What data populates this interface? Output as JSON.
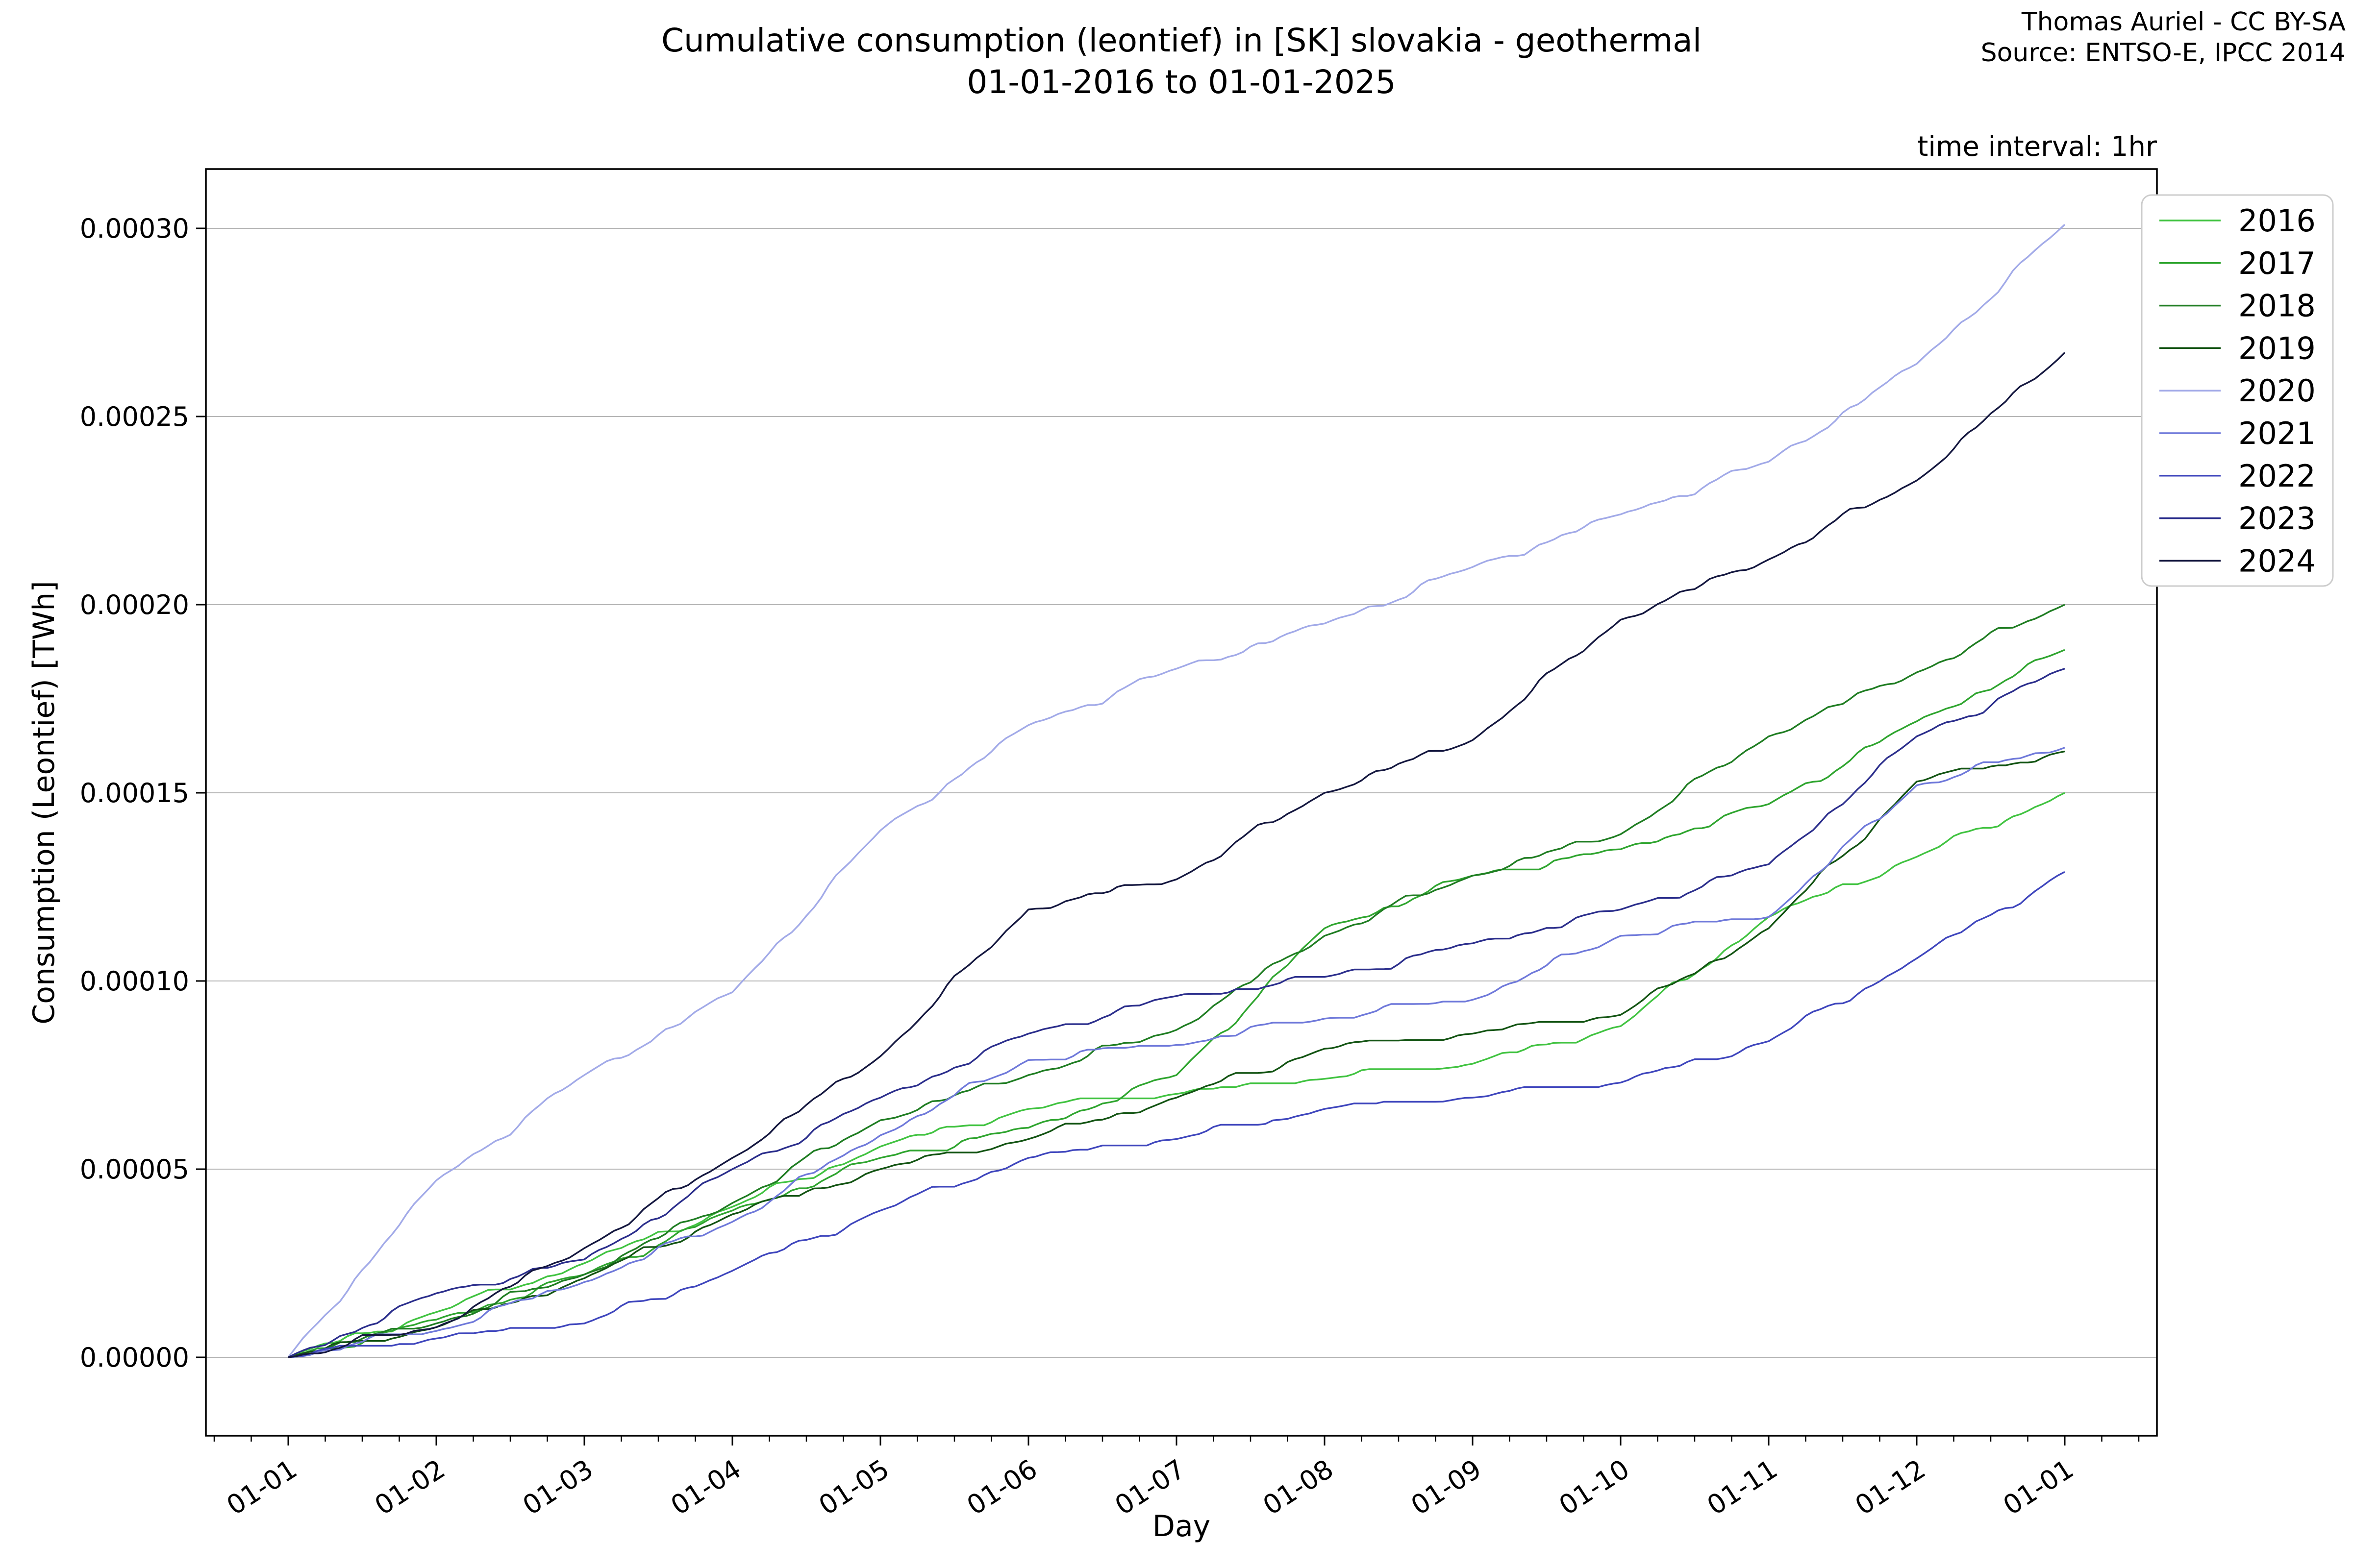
{
  "title": {
    "line1": "Cumulative consumption (leontief) in [SK] slovakia - geothermal",
    "line2": "01-01-2016 to 01-01-2025"
  },
  "attribution": {
    "line1": "Thomas Auriel - CC BY-SA",
    "line2": "Source: ENTSO-E, IPCC 2014"
  },
  "plot_note": "time interval: 1hr",
  "axes": {
    "x_label": "Day",
    "y_label": "Consumption (Leontief) [TWh]",
    "x_tick_labels": [
      "01-01",
      "01-02",
      "01-03",
      "01-04",
      "01-05",
      "01-06",
      "01-07",
      "01-08",
      "01-09",
      "01-10",
      "01-11",
      "01-12",
      "01-01"
    ],
    "y_tick_labels": [
      "0.00000",
      "0.00005",
      "0.00010",
      "0.00015",
      "0.00020",
      "0.00025",
      "0.00030"
    ],
    "y_tick_values": [
      0.0,
      5e-05,
      0.0001,
      0.00015,
      0.0002,
      0.00025,
      0.0003
    ]
  },
  "chart_data": {
    "type": "line",
    "units": "TWh",
    "x": [
      "01-01",
      "01-02",
      "01-03",
      "01-04",
      "01-05",
      "01-06",
      "01-07",
      "01-08",
      "01-09",
      "01-10",
      "01-11",
      "01-12",
      "01-01"
    ],
    "xlabel": "Day",
    "ylabel": "Consumption (Leontief) [TWh]",
    "ylim": [
      -2e-05,
      0.000316
    ],
    "grid": "horizontal",
    "legend_position": "upper right outside",
    "series": [
      {
        "name": "2016",
        "color": "#41c341",
        "values": [
          0,
          1.2e-05,
          2.5e-05,
          4e-05,
          5.6e-05,
          6.6e-05,
          7e-05,
          7.4e-05,
          7.8e-05,
          8.8e-05,
          0.000117,
          0.000133,
          0.00015
        ]
      },
      {
        "name": "2017",
        "color": "#2fa52f",
        "values": [
          0,
          1e-05,
          2.2e-05,
          3.9e-05,
          5.3e-05,
          6.1e-05,
          7.5e-05,
          0.000114,
          0.000128,
          0.000135,
          0.000147,
          0.000169,
          0.000188
        ]
      },
      {
        "name": "2018",
        "color": "#1f7d22",
        "values": [
          0,
          9e-06,
          2.2e-05,
          4.1e-05,
          6.3e-05,
          7.5e-05,
          8.7e-05,
          0.000112,
          0.000128,
          0.000139,
          0.000165,
          0.000182,
          0.0002
        ]
      },
      {
        "name": "2019",
        "color": "#135413",
        "values": [
          0,
          8e-06,
          2.1e-05,
          3.8e-05,
          5e-05,
          5.8e-05,
          6.9e-05,
          8.2e-05,
          8.6e-05,
          9.1e-05,
          0.000114,
          0.000153,
          0.000161
        ]
      },
      {
        "name": "2020",
        "color": "#a2aae8",
        "values": [
          0,
          4.7e-05,
          7.5e-05,
          9.7e-05,
          0.00014,
          0.000168,
          0.000183,
          0.000195,
          0.00021,
          0.000224,
          0.000238,
          0.000264,
          0.000301
        ]
      },
      {
        "name": "2021",
        "color": "#6f79da",
        "values": [
          0,
          7e-06,
          2e-05,
          3.6e-05,
          5.9e-05,
          7.9e-05,
          8.3e-05,
          9e-05,
          9.5e-05,
          0.000112,
          0.000117,
          0.000152,
          0.000162
        ]
      },
      {
        "name": "2022",
        "color": "#3f46bd",
        "values": [
          0,
          5e-06,
          9e-06,
          2.3e-05,
          3.9e-05,
          5.3e-05,
          5.8e-05,
          6.6e-05,
          6.9e-05,
          7.3e-05,
          8.4e-05,
          0.000106,
          0.000129
        ]
      },
      {
        "name": "2023",
        "color": "#2b2e8c",
        "values": [
          0,
          1.7e-05,
          2.6e-05,
          5e-05,
          6.9e-05,
          8.6e-05,
          9.6e-05,
          0.000101,
          0.00011,
          0.000119,
          0.000131,
          0.000165,
          0.000183
        ]
      },
      {
        "name": "2024",
        "color": "#14173f",
        "values": [
          0,
          8e-06,
          2.9e-05,
          5.3e-05,
          8e-05,
          0.000119,
          0.000127,
          0.00015,
          0.000164,
          0.000196,
          0.000212,
          0.000233,
          0.000267
        ]
      }
    ]
  }
}
